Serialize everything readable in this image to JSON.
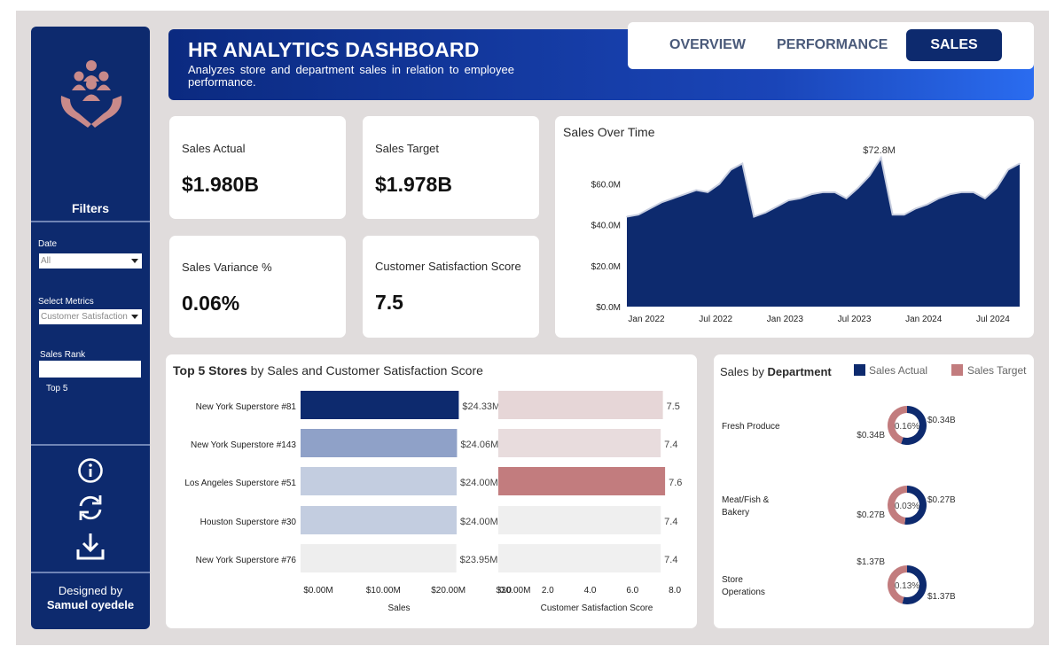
{
  "header": {
    "title": "HR ANALYTICS DASHBOARD",
    "subtitle": "Analyzes store and department sales in relation to employee performance."
  },
  "nav": {
    "tabs": [
      "OVERVIEW",
      "PERFORMANCE",
      "SALES"
    ],
    "active": "SALES"
  },
  "sidebar": {
    "filters_title": "Filters",
    "date_label": "Date",
    "date_value": "All",
    "metrics_label": "Select Metrics",
    "metrics_value": "Customer Satisfaction Score",
    "rank_label": "Sales Rank",
    "rank_value": "Top 5",
    "credit_line1": "Designed by",
    "credit_line2": "Samuel oyedele"
  },
  "kpis": {
    "sales_actual": {
      "label": "Sales Actual",
      "value": "$1.980B"
    },
    "sales_target": {
      "label": "Sales Target",
      "value": "$1.978B"
    },
    "variance": {
      "label": "Sales Variance %",
      "value": "0.06%"
    },
    "csat": {
      "label": "Customer Satisfaction Score",
      "value": "7.5"
    }
  },
  "sales_over_time": {
    "title": "Sales Over Time",
    "peak_label": "$72.8M"
  },
  "top_stores": {
    "title_bold": "Top 5 Stores",
    "title_rest": "by Sales and Customer Satisfaction Score"
  },
  "department": {
    "title_prefix": "Sales by",
    "title_bold": "Department",
    "legend": [
      "Sales Actual",
      "Sales Target"
    ],
    "rows": [
      {
        "name_line1": "Fresh Produce",
        "name_line2": "",
        "target": "$0.34B",
        "actual": "$0.34B",
        "pct": "0.16%",
        "actual_share": 0.55
      },
      {
        "name_line1": "Meat/Fish &",
        "name_line2": "Bakery",
        "target": "$0.27B",
        "actual": "$0.27B",
        "pct": "0.03%",
        "actual_share": 0.52
      },
      {
        "name_line1": "Store",
        "name_line2": "Operations",
        "target": "$1.37B",
        "actual": "$1.37B",
        "pct": "0.13%",
        "actual_share": 0.54
      }
    ]
  },
  "colors": {
    "navy": "#0d2a6e",
    "rose": "#c27c7e",
    "light_rose": "#e8d8d9",
    "grey_bar": "#f0f0f0"
  },
  "chart_data": [
    {
      "type": "area",
      "title": "Sales Over Time",
      "x": [
        "2022-01",
        "2022-02",
        "2022-03",
        "2022-04",
        "2022-05",
        "2022-06",
        "2022-07",
        "2022-08",
        "2022-09",
        "2022-10",
        "2022-11",
        "2022-12",
        "2023-01",
        "2023-02",
        "2023-03",
        "2023-04",
        "2023-05",
        "2023-06",
        "2023-07",
        "2023-08",
        "2023-09",
        "2023-10",
        "2023-11",
        "2023-12",
        "2024-01",
        "2024-02",
        "2024-03",
        "2024-04",
        "2024-05",
        "2024-06",
        "2024-07",
        "2024-08",
        "2024-09",
        "2024-10",
        "2024-11"
      ],
      "values": [
        44,
        45,
        48,
        51,
        53,
        55,
        57,
        56,
        60,
        67,
        70,
        44,
        46,
        49,
        52,
        53,
        55,
        56,
        56,
        53,
        58,
        64,
        72.8,
        45,
        45,
        48,
        50,
        53,
        55,
        56,
        56,
        53,
        58,
        67,
        70
      ],
      "xticks": [
        "Jan 2022",
        "Jul 2022",
        "Jan 2023",
        "Jul 2023",
        "Jan 2024",
        "Jul 2024"
      ],
      "yticks": [
        "$0.0M",
        "$20.0M",
        "$40.0M",
        "$60.0M"
      ],
      "ylim": [
        0,
        75
      ],
      "annotation": {
        "label": "$72.8M",
        "x": "2023-11"
      }
    },
    {
      "type": "bar",
      "title": "Top 5 Stores by Sales",
      "categories": [
        "New York Superstore #81",
        "New York Superstore #143",
        "Los Angeles Superstore #51",
        "Houston Superstore #30",
        "New York Superstore #76"
      ],
      "values": [
        24.33,
        24.06,
        24.0,
        24.0,
        23.95
      ],
      "value_labels": [
        "$24.33M",
        "$24.06M",
        "$24.00M",
        "$24.00M",
        "$23.95M"
      ],
      "xlabel": "Sales",
      "xticks": [
        "$0.00M",
        "$10.00M",
        "$20.00M",
        "$30.00M"
      ],
      "xlim": [
        0,
        30
      ]
    },
    {
      "type": "bar",
      "title": "Top 5 Stores by Customer Satisfaction Score",
      "categories": [
        "New York Superstore #81",
        "New York Superstore #143",
        "Los Angeles Superstore #51",
        "Houston Superstore #30",
        "New York Superstore #76"
      ],
      "values": [
        7.5,
        7.4,
        7.6,
        7.4,
        7.4
      ],
      "value_labels": [
        "7.5",
        "7.4",
        "7.6",
        "7.4",
        "7.4"
      ],
      "xlabel": "Customer Satisfaction Score",
      "xticks": [
        "0.0",
        "2.0",
        "4.0",
        "6.0",
        "8.0"
      ],
      "xlim": [
        0,
        8
      ]
    }
  ]
}
